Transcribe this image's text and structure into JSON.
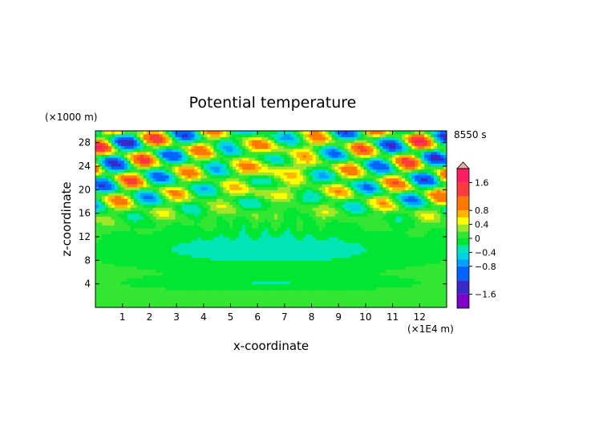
{
  "chart_data": {
    "type": "heatmap",
    "title": "Potential temperature",
    "xlabel": "x-coordinate",
    "ylabel": "z-coordinate",
    "x_unit": "(×1E4 m)",
    "y_unit": "(×1000 m)",
    "time_label": "8550 s",
    "xlim": [
      0,
      13
    ],
    "ylim": [
      0,
      30
    ],
    "x_ticks": [
      "1",
      "2",
      "3",
      "4",
      "5",
      "6",
      "7",
      "8",
      "9",
      "10",
      "11",
      "12"
    ],
    "y_ticks": [
      "4",
      "8",
      "12",
      "16",
      "20",
      "24",
      "28"
    ],
    "colorbar": {
      "range": [
        -2,
        2
      ],
      "tick_labels": [
        "1.6",
        "0.8",
        "0.4",
        "0",
        "−0.4",
        "−0.8",
        "−1.6"
      ],
      "tick_values": [
        1.6,
        0.8,
        0.4,
        0,
        -0.4,
        -0.8,
        -1.6
      ],
      "levels": [
        -2,
        -1.6,
        -1.2,
        -0.8,
        -0.6,
        -0.4,
        -0.2,
        0,
        0.2,
        0.4,
        0.6,
        0.8,
        1.2,
        1.6,
        2
      ],
      "colors": [
        "#7f00c8",
        "#3c28c8",
        "#0064ff",
        "#00a0ff",
        "#00d2e6",
        "#00e6b4",
        "#00e632",
        "#32e632",
        "#a0e628",
        "#ffff00",
        "#ffb400",
        "#ff7800",
        "#ff3c3c",
        "#ff1e64"
      ],
      "extend": "both"
    },
    "pattern_note": "wave field; green background near 0, cyan band negative mid-height, yellow/orange/blue checker pattern in upper corners"
  }
}
